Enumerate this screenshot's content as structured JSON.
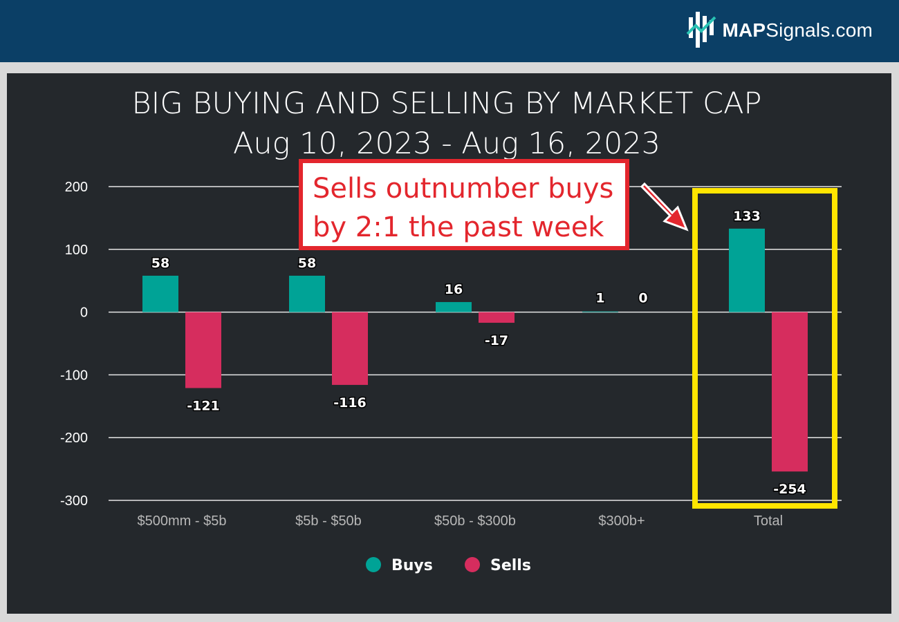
{
  "header": {
    "logo_bold": "MAP",
    "logo_rest": "Signals.com"
  },
  "annotation": {
    "line1": "Sells outnumber buys",
    "line2": "by 2:1 the past week"
  },
  "chart_data": {
    "type": "bar",
    "title": "BIG BUYING AND SELLING BY MARKET CAP",
    "subtitle": "Aug 10, 2023 - Aug 16, 2023",
    "categories": [
      "$500mm - $5b",
      "$5b - $50b",
      "$50b - $300b",
      "$300b+",
      "Total"
    ],
    "series": [
      {
        "name": "Buys",
        "values": [
          58,
          58,
          16,
          1,
          133
        ],
        "color": "#00a396"
      },
      {
        "name": "Sells",
        "values": [
          -121,
          -116,
          -17,
          0,
          -254
        ],
        "color": "#d62d5e"
      }
    ],
    "ylim": [
      -300,
      200
    ],
    "yticks": [
      200,
      100,
      0,
      -100,
      -200,
      -300
    ],
    "grid": true,
    "legend_position": "bottom-center",
    "highlight_category": "Total",
    "highlight_color": "#ffe500",
    "annotation_box_color": "#e3262d"
  }
}
